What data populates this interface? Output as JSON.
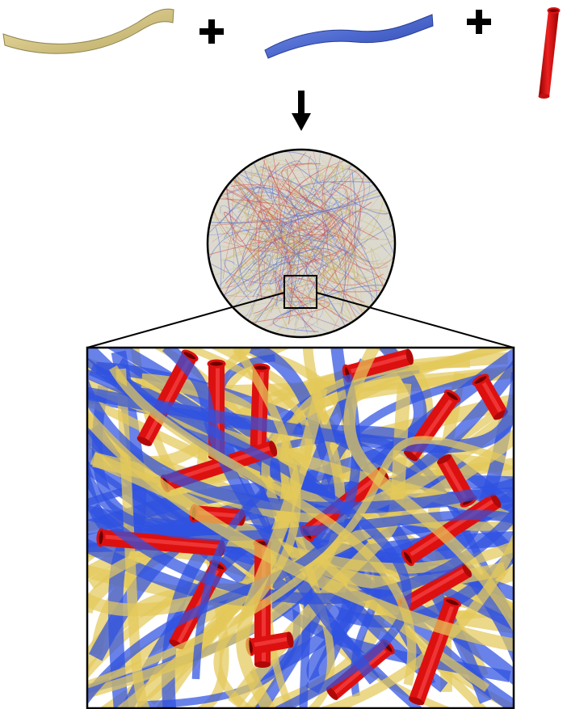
{
  "components": [
    {
      "kind": "ribbon",
      "color": "#d9cd8f",
      "edge": "#9a8e55"
    },
    {
      "kind": "ribbon",
      "color": "#5d78d6",
      "edge": "#2f46a3"
    },
    {
      "kind": "tube",
      "color": "#d81414",
      "edge": "#7a0000"
    }
  ],
  "operators": [
    "plus",
    "plus",
    "arrow-down"
  ],
  "mixture": {
    "shape": "circle",
    "fill": "#d8d4c8",
    "fiber_colors": [
      "#c9b969",
      "#5a74cf",
      "#d05050"
    ]
  },
  "zoom": {
    "ribbon_yellow": "#e3c95a",
    "ribbon_blue": "#2f52e0",
    "tube_red": "#dd1010",
    "tube_dark": "#6e0000"
  }
}
